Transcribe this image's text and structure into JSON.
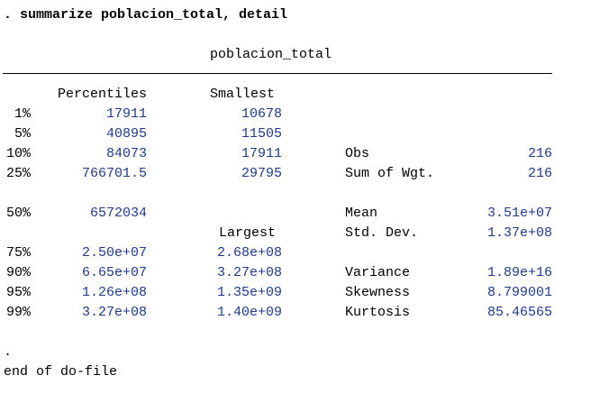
{
  "command": ". summarize poblacion_total, detail",
  "variable_title": "poblacion_total",
  "headers": {
    "percentiles": "Percentiles",
    "smallest": "Smallest",
    "largest": "Largest"
  },
  "rows": [
    {
      "pct": "1%",
      "value": "17911",
      "extreme": "10678",
      "stat_label": "",
      "stat_value": ""
    },
    {
      "pct": "5%",
      "value": "40895",
      "extreme": "11505",
      "stat_label": "",
      "stat_value": ""
    },
    {
      "pct": "10%",
      "value": "84073",
      "extreme": "17911",
      "stat_label": "Obs",
      "stat_value": "216"
    },
    {
      "pct": "25%",
      "value": "766701.5",
      "extreme": "29795",
      "stat_label": "Sum of Wgt.",
      "stat_value": "216"
    },
    {
      "pct": "50%",
      "value": "6572034",
      "extreme": "",
      "stat_label": "Mean",
      "stat_value": "3.51e+07"
    },
    {
      "pct": "",
      "value": "",
      "extreme": "",
      "stat_label": "Std. Dev.",
      "stat_value": "1.37e+08"
    },
    {
      "pct": "75%",
      "value": "2.50e+07",
      "extreme": "2.68e+08",
      "stat_label": "",
      "stat_value": ""
    },
    {
      "pct": "90%",
      "value": "6.65e+07",
      "extreme": "3.27e+08",
      "stat_label": "Variance",
      "stat_value": "1.89e+16"
    },
    {
      "pct": "95%",
      "value": "1.26e+08",
      "extreme": "1.35e+09",
      "stat_label": "Skewness",
      "stat_value": "8.799001"
    },
    {
      "pct": "99%",
      "value": "3.27e+08",
      "extreme": "1.40e+09",
      "stat_label": "Kurtosis",
      "stat_value": "85.46565"
    }
  ],
  "footer_dot": ".",
  "footer_text": "end of do-file",
  "colors": {
    "text": "#000000",
    "number": "#1f3a8f",
    "background": "#ffffff"
  }
}
